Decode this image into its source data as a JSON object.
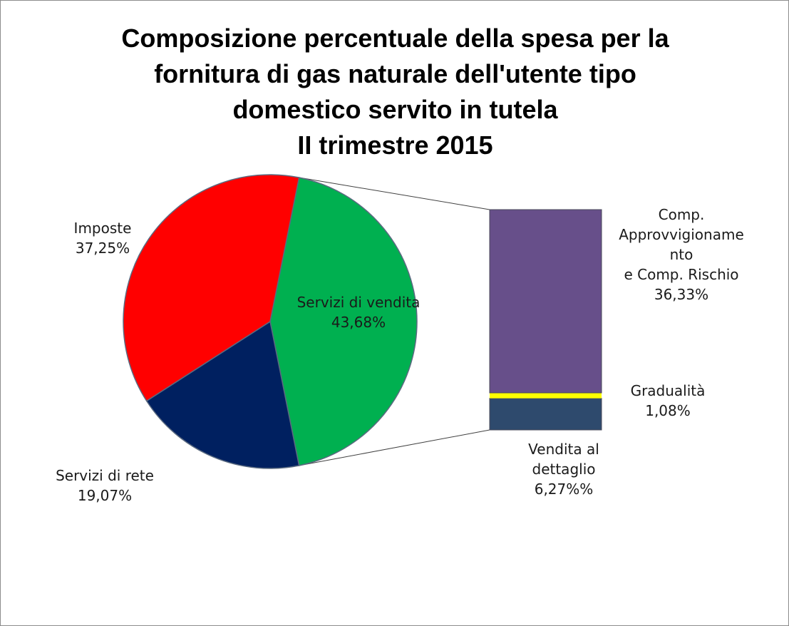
{
  "chart_data": {
    "type": "pie",
    "title_lines": [
      "Composizione percentuale della spesa per la",
      "fornitura di gas naturale dell'utente tipo",
      "domestico servito in tutela",
      "II trimestre 2015"
    ],
    "pie": {
      "slices": [
        {
          "name": "Servizi di vendita",
          "value": 43.68,
          "label": "Servizi di vendita",
          "pct_text": "43,68%",
          "color": "#00b050"
        },
        {
          "name": "Servizi di rete",
          "value": 19.07,
          "label": "Servizi di rete",
          "pct_text": "19,07%",
          "color": "#002060"
        },
        {
          "name": "Imposte",
          "value": 37.25,
          "label": "Imposte",
          "pct_text": "37,25%",
          "color": "#ff0000"
        }
      ]
    },
    "breakdown": {
      "of": "Servizi di vendita",
      "segments": [
        {
          "name": "Comp. Approvvigionamento e Comp. Rischio",
          "value": 36.33,
          "label_lines": [
            "Comp.",
            "Approvvigioname",
            "nto",
            "e  Comp. Rischio",
            "36,33%"
          ],
          "color": "#674f8a"
        },
        {
          "name": "Gradualità",
          "value": 1.08,
          "label_lines": [
            "Gradualità",
            "1,08%"
          ],
          "color": "#ffff00"
        },
        {
          "name": "Vendita al dettaglio",
          "value": 6.27,
          "label_lines": [
            "Vendita al",
            "dettaglio",
            "6,27%%"
          ],
          "color": "#2e4a6d"
        }
      ]
    }
  }
}
